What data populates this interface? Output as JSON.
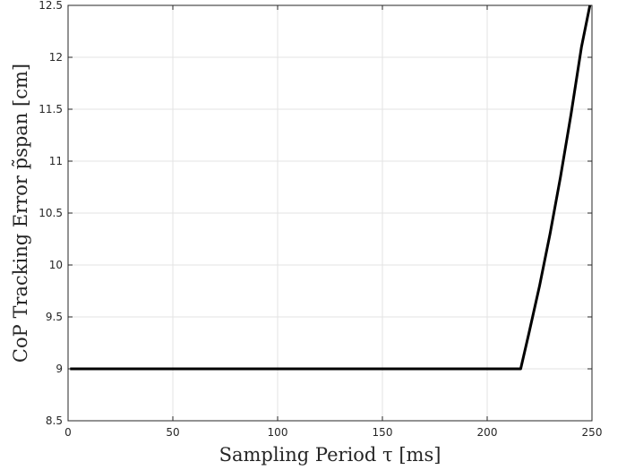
{
  "chart_data": {
    "type": "line",
    "title": "",
    "xlabel": "Sampling Period τ [ms]",
    "ylabel": "CoP Tracking Error p̃span [cm]",
    "xlim": [
      0,
      250
    ],
    "ylim": [
      8.5,
      12.5
    ],
    "xticks": [
      "0",
      "50",
      "100",
      "150",
      "200",
      "250"
    ],
    "yticks": [
      "8.5",
      "9",
      "9.5",
      "10",
      "10.5",
      "11",
      "11.5",
      "12",
      "12.5"
    ],
    "grid": true,
    "legend": "none",
    "series": [
      {
        "color": "#000000",
        "x": [
          1,
          50,
          100,
          150,
          200,
          216,
          220,
          225,
          230,
          235,
          240,
          245,
          249
        ],
        "y": [
          9.0,
          9.0,
          9.0,
          9.0,
          9.0,
          9.0,
          9.35,
          9.8,
          10.3,
          10.85,
          11.45,
          12.1,
          12.5
        ]
      }
    ]
  }
}
